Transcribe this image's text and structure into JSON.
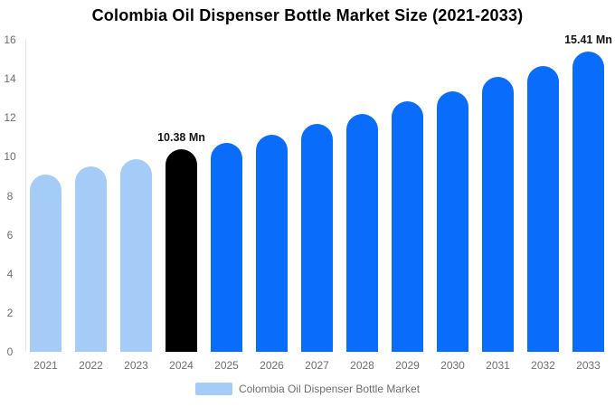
{
  "title": "Colombia Oil Dispenser Bottle Market Size (2021-2033)",
  "legend": {
    "label": "Colombia Oil Dispenser Bottle Market"
  },
  "colors": {
    "historical_bar": "#a5ccf6",
    "base_year_bar": "#000000",
    "forecast_bar": "#0a6cfa",
    "axis_text": "#6d6d6d",
    "annotation_text": "#141414",
    "axis_line": "#e4e4e4",
    "title_text": "#000000",
    "background": "#ffffff"
  },
  "chart_data": {
    "type": "bar",
    "title": "Colombia Oil Dispenser Bottle Market Size (2021-2033)",
    "unit": "Mn",
    "categories": [
      "2021",
      "2022",
      "2023",
      "2024",
      "2025",
      "2026",
      "2027",
      "2028",
      "2029",
      "2030",
      "2031",
      "2032",
      "2033"
    ],
    "values": [
      9.1,
      9.5,
      9.9,
      10.38,
      10.7,
      11.15,
      11.7,
      12.2,
      12.85,
      13.35,
      14.1,
      14.65,
      15.41
    ],
    "bar_roles": [
      "historical",
      "historical",
      "historical",
      "base_year",
      "forecast",
      "forecast",
      "forecast",
      "forecast",
      "forecast",
      "forecast",
      "forecast",
      "forecast",
      "forecast"
    ],
    "xlabel": "",
    "ylabel": "",
    "ylim": [
      0,
      16
    ],
    "yticks": [
      0,
      2,
      4,
      6,
      8,
      10,
      12,
      14,
      16
    ],
    "grid": "off",
    "legend_position": "bottom",
    "annotations": [
      {
        "category": "2024",
        "text": "10.38 Mn"
      },
      {
        "category": "2033",
        "text": "15.41 Mn"
      }
    ]
  }
}
